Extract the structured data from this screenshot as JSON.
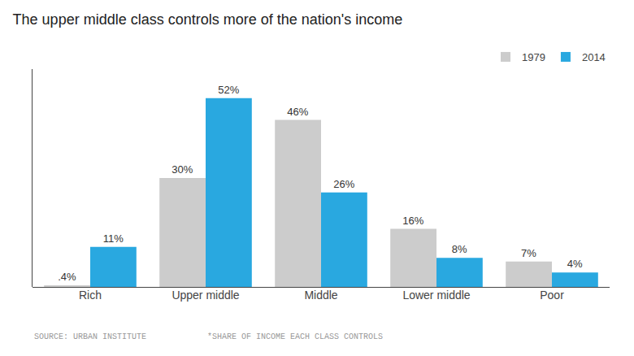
{
  "chart_data": {
    "type": "bar",
    "title": "The upper middle class controls more of the nation's income",
    "categories": [
      "Rich",
      "Upper middle",
      "Middle",
      "Lower middle",
      "Poor"
    ],
    "series": [
      {
        "name": "1979",
        "color": "#cccccc",
        "values": [
          0.4,
          30,
          46,
          16,
          7
        ],
        "value_labels": [
          ".4%",
          "30%",
          "46%",
          "16%",
          "7%"
        ]
      },
      {
        "name": "2014",
        "color": "#29a8e0",
        "values": [
          11,
          52,
          26,
          8,
          4
        ],
        "value_labels": [
          "11%",
          "52%",
          "26%",
          "8%",
          "4%"
        ]
      }
    ],
    "ylim": [
      0,
      60
    ],
    "grid": false,
    "legend": "upper right",
    "data_labels": true,
    "tick_labels": "x",
    "annotations": [
      "SOURCE: URBAN INSTITUTE",
      "*SHARE OF INCOME EACH CLASS CONTROLS"
    ]
  }
}
